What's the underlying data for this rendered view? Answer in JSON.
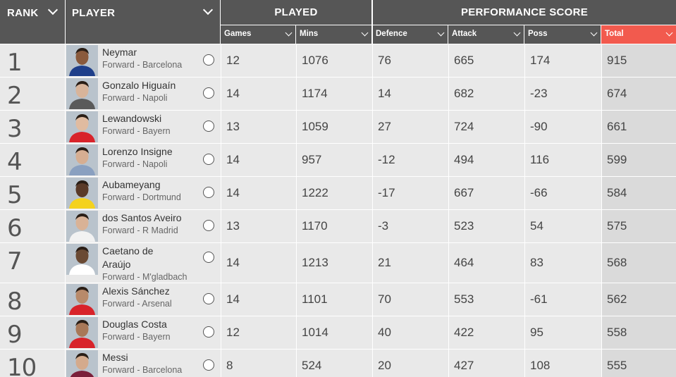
{
  "header": {
    "rank_label": "RANK",
    "player_label": "PLAYER",
    "played_label": "PLAYED",
    "performance_label": "PERFORMANCE SCORE",
    "games_label": "Games",
    "mins_label": "Mins",
    "defence_label": "Defence",
    "attack_label": "Attack",
    "poss_label": "Poss",
    "total_label": "Total"
  },
  "colors": {
    "header_bg": "#565656",
    "row_bg": "#e9e9e9",
    "total_header_bg": "#f25a4e",
    "total_cell_bg": "#dadada"
  },
  "rows": [
    {
      "rank": "1",
      "name_lines": [
        "Neymar"
      ],
      "info": "Forward - Barcelona",
      "games": "12",
      "mins": "1076",
      "defence": "76",
      "attack": "665",
      "poss": "174",
      "total": "915",
      "kit": "#1f3f8a",
      "skin": "#8a5a3c"
    },
    {
      "rank": "2",
      "name_lines": [
        "Gonzalo Higuaín"
      ],
      "info": "Forward - Napoli",
      "games": "14",
      "mins": "1174",
      "defence": "14",
      "attack": "682",
      "poss": "-23",
      "total": "674",
      "kit": "#5a5a5a",
      "skin": "#d8b49a"
    },
    {
      "rank": "3",
      "name_lines": [
        "Lewandowski"
      ],
      "info": "Forward - Bayern",
      "games": "13",
      "mins": "1059",
      "defence": "27",
      "attack": "724",
      "poss": "-90",
      "total": "661",
      "kit": "#d8232a",
      "skin": "#e0bba0"
    },
    {
      "rank": "4",
      "name_lines": [
        "Lorenzo Insigne"
      ],
      "info": "Forward - Napoli",
      "games": "14",
      "mins": "957",
      "defence": "-12",
      "attack": "494",
      "poss": "116",
      "total": "599",
      "kit": "#8aa0c0",
      "skin": "#d6ae92"
    },
    {
      "rank": "5",
      "name_lines": [
        "Aubameyang"
      ],
      "info": "Forward - Dortmund",
      "games": "14",
      "mins": "1222",
      "defence": "-17",
      "attack": "667",
      "poss": "-66",
      "total": "584",
      "kit": "#f4d21e",
      "skin": "#5a3a28"
    },
    {
      "rank": "6",
      "name_lines": [
        "dos Santos Aveiro"
      ],
      "info": "Forward - R Madrid",
      "games": "13",
      "mins": "1170",
      "defence": "-3",
      "attack": "523",
      "poss": "54",
      "total": "575",
      "kit": "#f2f2f2",
      "skin": "#d9b296"
    },
    {
      "rank": "7",
      "name_lines": [
        "Caetano de",
        "Araújo"
      ],
      "info": "Forward - M'gladbach",
      "games": "14",
      "mins": "1213",
      "defence": "21",
      "attack": "464",
      "poss": "83",
      "total": "568",
      "kit": "#ffffff",
      "skin": "#6a4a34"
    },
    {
      "rank": "8",
      "name_lines": [
        "Alexis Sánchez"
      ],
      "info": "Forward - Arsenal",
      "games": "14",
      "mins": "1101",
      "defence": "70",
      "attack": "553",
      "poss": "-61",
      "total": "562",
      "kit": "#d8232a",
      "skin": "#b88a6a"
    },
    {
      "rank": "9",
      "name_lines": [
        "Douglas Costa"
      ],
      "info": "Forward - Bayern",
      "games": "12",
      "mins": "1014",
      "defence": "40",
      "attack": "422",
      "poss": "95",
      "total": "558",
      "kit": "#d8232a",
      "skin": "#a87858"
    },
    {
      "rank": "10",
      "name_lines": [
        "Messi"
      ],
      "info": "Forward - Barcelona",
      "games": "8",
      "mins": "524",
      "defence": "20",
      "attack": "427",
      "poss": "108",
      "total": "555",
      "kit": "#7a1f3a",
      "skin": "#d4aa8c"
    }
  ]
}
